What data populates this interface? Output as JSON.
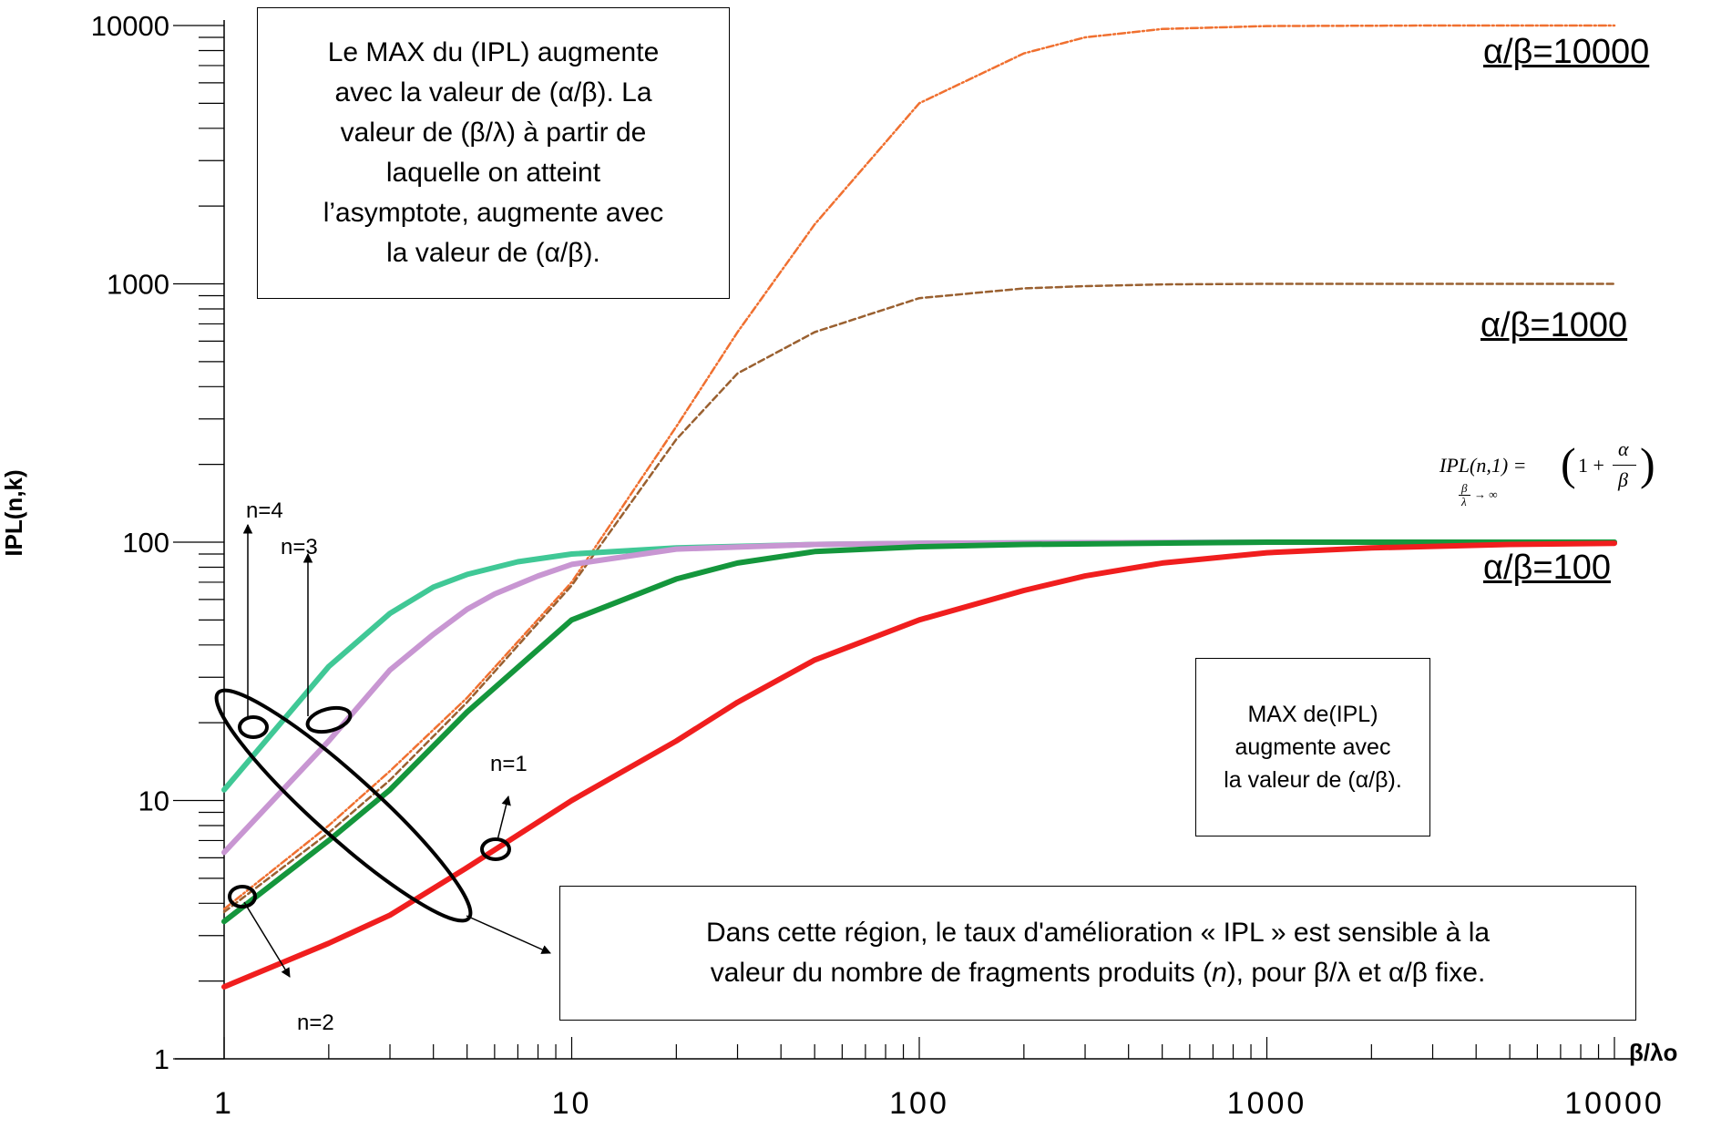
{
  "chart_data": {
    "type": "line",
    "xscale": "log",
    "yscale": "log",
    "xlim": [
      1,
      10000
    ],
    "ylim": [
      1,
      10000
    ],
    "xlabel": "β/λo",
    "ylabel": "IPL(n,k)",
    "x_ticks": [
      "1",
      "10",
      "100",
      "1000",
      "10000"
    ],
    "y_ticks": [
      "1",
      "10",
      "100",
      "1000",
      "10000"
    ],
    "grid": false,
    "series": [
      {
        "key": "ab10000",
        "color": "#f07030",
        "style": "dashdot",
        "x": [
          1,
          2,
          3,
          5,
          10,
          20,
          30,
          50,
          100,
          200,
          300,
          500,
          1000,
          3000,
          10000
        ],
        "y": [
          3.8,
          8,
          13,
          25,
          70,
          280,
          650,
          1700,
          5000,
          7800,
          9000,
          9700,
          9950,
          10000,
          10000
        ]
      },
      {
        "key": "ab1000",
        "color": "#9a6030",
        "style": "dashed",
        "x": [
          1,
          2,
          3,
          5,
          10,
          20,
          30,
          50,
          100,
          200,
          300,
          500,
          1000,
          3000,
          10000
        ],
        "y": [
          3.7,
          7.5,
          12,
          24,
          68,
          250,
          450,
          650,
          880,
          960,
          980,
          995,
          1000,
          1000,
          1000
        ]
      },
      {
        "key": "n4",
        "color": "#40c896",
        "style": "solid",
        "x": [
          1,
          2,
          3,
          4,
          5,
          7,
          10,
          20,
          50,
          100,
          1000,
          10000
        ],
        "y": [
          11,
          33,
          53,
          67,
          75,
          84,
          90,
          95,
          98,
          99,
          100,
          100
        ]
      },
      {
        "key": "n3",
        "color": "#c896d2",
        "style": "solid",
        "x": [
          1,
          2,
          3,
          4,
          5,
          6,
          8,
          10,
          20,
          50,
          100,
          1000,
          10000
        ],
        "y": [
          6.3,
          17,
          32,
          44,
          55,
          63,
          74,
          82,
          94,
          98,
          99,
          100,
          100
        ]
      },
      {
        "key": "n2",
        "color": "#14963c",
        "style": "solid",
        "x": [
          1,
          2,
          3,
          5,
          10,
          20,
          30,
          50,
          100,
          200,
          1000,
          10000
        ],
        "y": [
          3.4,
          7,
          11,
          22,
          50,
          72,
          83,
          92,
          96,
          98,
          100,
          100
        ]
      },
      {
        "key": "n1",
        "color": "#f01e1e",
        "style": "solid",
        "x": [
          1,
          2,
          3,
          5,
          10,
          20,
          30,
          50,
          100,
          200,
          300,
          500,
          1000,
          2000,
          5000,
          10000
        ],
        "y": [
          1.9,
          2.8,
          3.6,
          5.5,
          10,
          17,
          24,
          35,
          50,
          65,
          74,
          83,
          91,
          95,
          98,
          99
        ]
      }
    ],
    "series_labels": [
      {
        "text": "α/β=10000"
      },
      {
        "text": "α/β=1000"
      },
      {
        "text": "α/β=100"
      }
    ],
    "n_labels": [
      "n=1",
      "n=2",
      "n=3",
      "n=4"
    ]
  },
  "annotations": {
    "box_top": "Le MAX du (IPL) augmente\navec la valeur de (α/β). La\nvaleur de (β/λ) à partir de\nlaquelle on atteint\nl’asymptote, augmente avec\nla valeur de (α/β).",
    "box_right": "MAX de(IPL)\naugmente avec\nla valeur de (α/β).",
    "box_bottom_pre": "Dans cette région, le taux d'amélioration « IPL »  est sensible à la\nvaleur du nombre de fragments produits (",
    "box_bottom_n": "n",
    "box_bottom_post": "), pour β/λ et α/β fixe.",
    "formula_lhs": "IPL(n,1) =",
    "formula_one": "1 +",
    "formula_num": "α",
    "formula_den": "β",
    "formula_sub_num": "β",
    "formula_sub_den": "λ",
    "formula_sub_arrow": "→ ∞"
  }
}
